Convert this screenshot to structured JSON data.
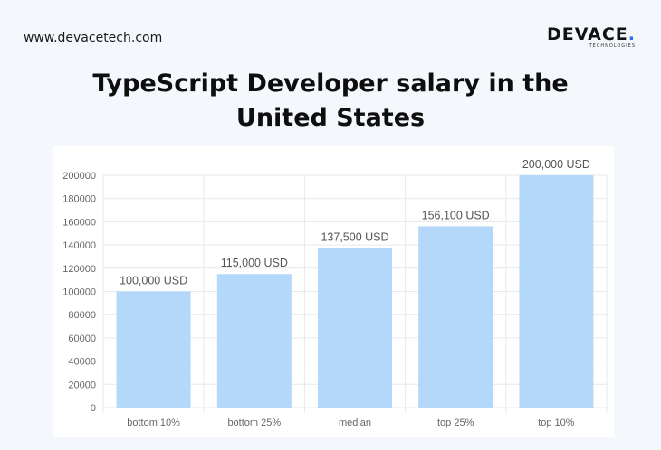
{
  "header": {
    "website": "www.devacetech.com",
    "brand_name": "DEVACE",
    "brand_dot": ".",
    "brand_sub": "TECHNOLOGIES"
  },
  "title": {
    "line1": "TypeScript Developer salary in the",
    "line2": "United States"
  },
  "colors": {
    "bar": "#b3d8fa",
    "grid": "#e6e9ee",
    "tick_text": "#666666",
    "label_text": "#555555"
  },
  "chart_data": {
    "type": "bar",
    "title": "TypeScript Developer salary in the United States",
    "categories": [
      "bottom 10%",
      "bottom 25%",
      "median",
      "top 25%",
      "top 10%"
    ],
    "values": [
      100000,
      115000,
      137500,
      156100,
      200000
    ],
    "value_labels": [
      "100,000 USD",
      "115,000 USD",
      "137,500 USD",
      "156,100 USD",
      "200,000 USD"
    ],
    "y_ticks": [
      "0",
      "20000",
      "40000",
      "60000",
      "80000",
      "100000",
      "120000",
      "140000",
      "160000",
      "180000",
      "200000"
    ],
    "ylim": [
      0,
      200000
    ],
    "xlabel": "",
    "ylabel": "",
    "grid": true,
    "legend": false
  }
}
